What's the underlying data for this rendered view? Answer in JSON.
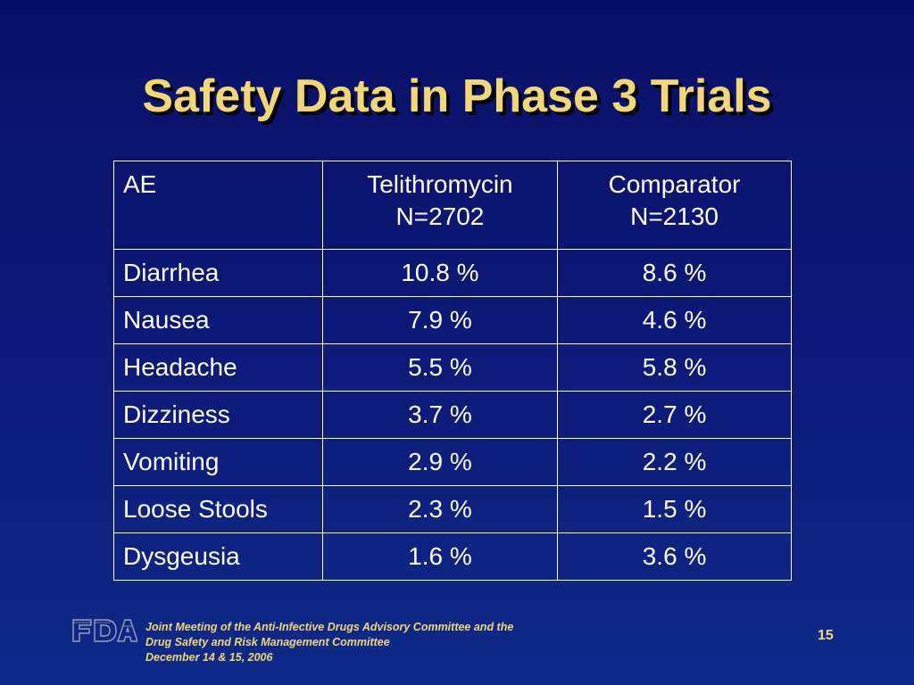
{
  "title": "Safety Data in Phase 3 Trials",
  "table": {
    "headers": [
      {
        "line1": "AE",
        "line2": ""
      },
      {
        "line1": "Telithromycin",
        "line2": "N=2702"
      },
      {
        "line1": "Comparator",
        "line2": "N=2130"
      }
    ],
    "rows": [
      [
        "Diarrhea",
        "10.8 %",
        "8.6 %"
      ],
      [
        "Nausea",
        "7.9 %",
        "4.6 %"
      ],
      [
        "Headache",
        "5.5 %",
        "5.8 %"
      ],
      [
        "Dizziness",
        "3.7 %",
        "2.7 %"
      ],
      [
        "Vomiting",
        "2.9 %",
        "2.2 %"
      ],
      [
        "Loose Stools",
        "2.3 %",
        "1.5 %"
      ],
      [
        "Dysgeusia",
        "1.6 %",
        "3.6 %"
      ]
    ]
  },
  "footer": {
    "logo_text": "FDA",
    "lines": [
      "Joint Meeting of the Anti-Infective Drugs Advisory Committee and the",
      "Drug Safety and Risk Management Committee",
      "December 14 & 15, 2006"
    ],
    "page_number": "15"
  },
  "colors": {
    "title": "#f2d77a",
    "background": "#0a0f66",
    "table_text": "#ffffff",
    "footer_text": "#f2d77a"
  }
}
